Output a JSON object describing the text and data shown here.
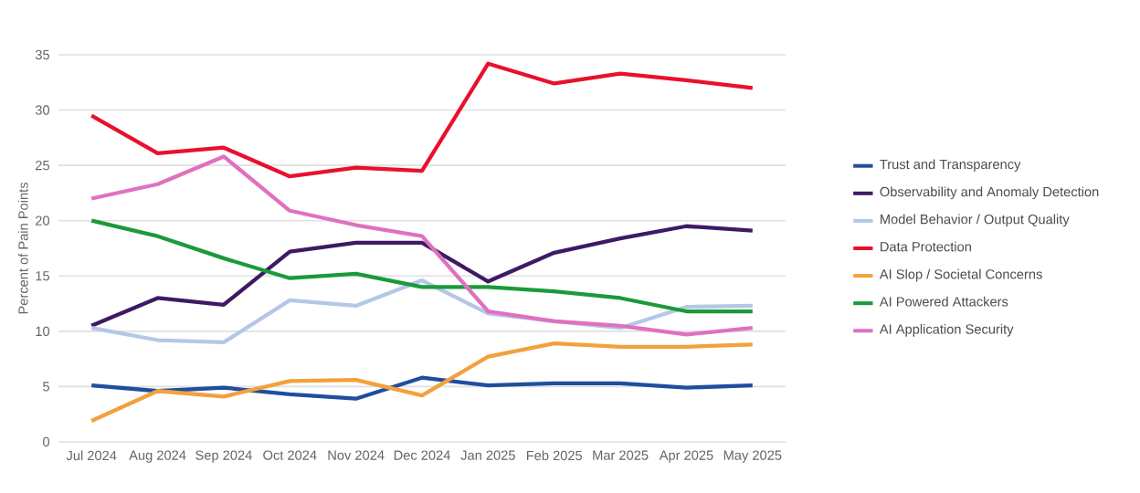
{
  "chart_data": {
    "type": "line",
    "ylabel": "Percent of Pain Points",
    "categories": [
      "Jul 2024",
      "Aug 2024",
      "Sep 2024",
      "Oct 2024",
      "Nov 2024",
      "Dec 2024",
      "Jan 2025",
      "Feb 2025",
      "Mar 2025",
      "Apr 2025",
      "May 2025"
    ],
    "series": [
      {
        "name": "Trust and Transparency",
        "color": "#1f4e9e",
        "values": [
          5.1,
          4.6,
          4.9,
          4.3,
          3.9,
          5.8,
          5.1,
          5.3,
          5.3,
          4.9,
          5.1
        ]
      },
      {
        "name": "Observability and Anomaly Detection",
        "color": "#3d1a63",
        "values": [
          10.5,
          13.0,
          12.4,
          17.2,
          18.0,
          18.0,
          14.5,
          17.1,
          18.4,
          19.5,
          19.1
        ]
      },
      {
        "name": "Model Behavior / Output Quality",
        "color": "#b4c7e7",
        "values": [
          10.3,
          9.2,
          9.0,
          12.8,
          12.3,
          14.6,
          11.6,
          10.9,
          10.3,
          12.2,
          12.3
        ]
      },
      {
        "name": "Data Protection",
        "color": "#e8112d",
        "values": [
          29.5,
          26.1,
          26.6,
          24.0,
          24.8,
          24.5,
          34.2,
          32.4,
          33.3,
          32.7,
          32.0
        ]
      },
      {
        "name": "AI Slop /  Societal Concerns",
        "color": "#f4a03c",
        "values": [
          1.9,
          4.6,
          4.1,
          5.5,
          5.6,
          4.2,
          7.7,
          8.9,
          8.6,
          8.6,
          8.8
        ]
      },
      {
        "name": "AI Powered Attackers",
        "color": "#1a9a3a",
        "values": [
          20.0,
          18.6,
          16.6,
          14.8,
          15.2,
          14.0,
          14.0,
          13.6,
          13.0,
          11.8,
          11.8
        ]
      },
      {
        "name": "AI Application Security",
        "color": "#e070c0",
        "values": [
          22.0,
          23.3,
          25.8,
          20.9,
          19.6,
          18.6,
          11.8,
          10.9,
          10.5,
          9.7,
          10.3
        ]
      }
    ],
    "ylim": [
      0,
      35
    ],
    "yticks": [
      0,
      5,
      10,
      15,
      20,
      25,
      30,
      35
    ],
    "grid": "y",
    "legend": "right",
    "marker": "none",
    "line_style": "solid"
  }
}
